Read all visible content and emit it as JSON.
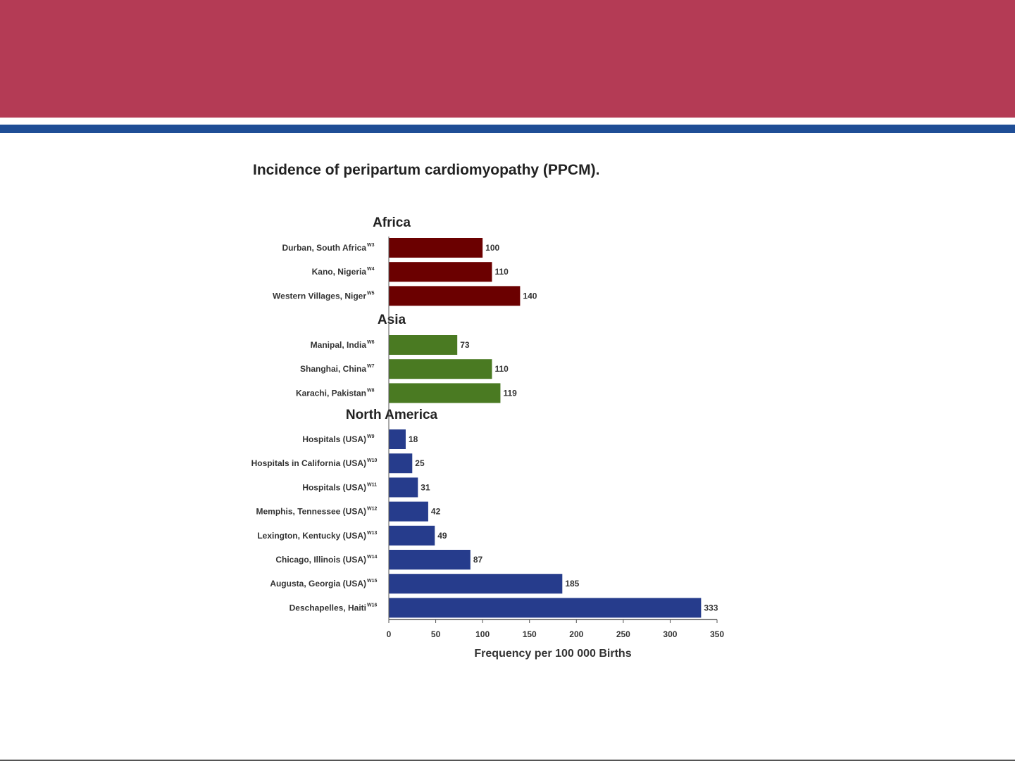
{
  "theme": {
    "header_color": "#b43b55",
    "stripe_color": "#1f4e96",
    "africa_color": "#6b0000",
    "asia_color": "#4a7a22",
    "north_america_color": "#263c8c"
  },
  "chart_data": {
    "type": "bar",
    "orientation": "horizontal",
    "title": "Incidence of peripartum cardiomyopathy (PPCM).",
    "xlabel": "Frequency per 100 000 Births",
    "xlim": [
      0,
      350
    ],
    "xticks": [
      0,
      50,
      100,
      150,
      200,
      250,
      300,
      350
    ],
    "grid": false,
    "groups": [
      {
        "name": "Africa",
        "color_key": "africa_color",
        "items": [
          {
            "label": "Durban, South Africa",
            "sup": "W3",
            "value": 100
          },
          {
            "label": "Kano, Nigeria",
            "sup": "W4",
            "value": 110
          },
          {
            "label": "Western Villages, Niger",
            "sup": "W5",
            "value": 140
          }
        ]
      },
      {
        "name": "Asia",
        "color_key": "asia_color",
        "items": [
          {
            "label": "Manipal, India",
            "sup": "W6",
            "value": 73
          },
          {
            "label": "Shanghai, China",
            "sup": "W7",
            "value": 110
          },
          {
            "label": "Karachi, Pakistan",
            "sup": "W8",
            "value": 119
          }
        ]
      },
      {
        "name": "North America",
        "color_key": "north_america_color",
        "items": [
          {
            "label": "Hospitals (USA)",
            "sup": "W9",
            "value": 18
          },
          {
            "label": "Hospitals in California (USA)",
            "sup": "W10",
            "value": 25
          },
          {
            "label": "Hospitals (USA)",
            "sup": "W11",
            "value": 31
          },
          {
            "label": "Memphis, Tennessee (USA)",
            "sup": "W12",
            "value": 42
          },
          {
            "label": "Lexington, Kentucky (USA)",
            "sup": "W13",
            "value": 49
          },
          {
            "label": "Chicago, Illinois (USA)",
            "sup": "W14",
            "value": 87
          },
          {
            "label": "Augusta, Georgia (USA)",
            "sup": "W15",
            "value": 185
          },
          {
            "label": "Deschapelles, Haiti",
            "sup": "W16",
            "value": 333
          }
        ]
      }
    ]
  }
}
